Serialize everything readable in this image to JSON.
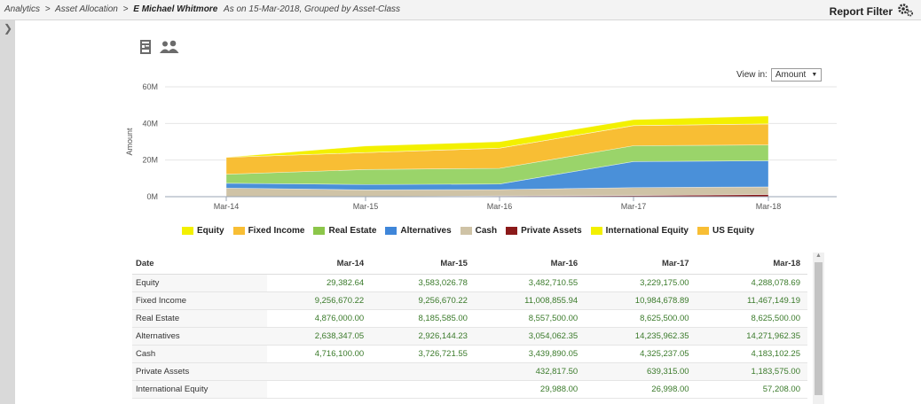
{
  "breadcrumb": {
    "analytics": "Analytics",
    "sep1": ">",
    "asset_allocation": "Asset Allocation",
    "sep2": ">",
    "client": "E Michael Whitmore",
    "subtitle": "As on 15-Mar-2018, Grouped by Asset-Class"
  },
  "report_filter": {
    "label": "Report Filter",
    "icon": "gears-icon"
  },
  "toolbar_icons": [
    "report-icon",
    "users-icon"
  ],
  "view_in": {
    "label": "View in:",
    "value": "Amount"
  },
  "chart_data": {
    "type": "area",
    "stacked": true,
    "x": [
      "Mar-14",
      "Mar-15",
      "Mar-16",
      "Mar-17",
      "Mar-18"
    ],
    "ylabel": "Amount",
    "ylim": [
      0,
      60000000
    ],
    "yticks": [
      0,
      20000000,
      40000000,
      60000000
    ],
    "ytick_labels": [
      "0M",
      "20M",
      "40M",
      "60M"
    ],
    "grid": true,
    "legend_position": "bottom",
    "series": [
      {
        "name": "Private Assets",
        "color": "#8b1a1a",
        "values": [
          0,
          0,
          432817.5,
          639315.0,
          1183575.0
        ]
      },
      {
        "name": "Cash",
        "color": "#cfc3a6",
        "values": [
          4716100.0,
          3726721.55,
          3439890.05,
          4325237.05,
          4183102.25
        ]
      },
      {
        "name": "Alternatives",
        "color": "#4a90d9",
        "values": [
          2638347.05,
          2926144.23,
          3054062.35,
          14235962.35,
          14271962.35
        ]
      },
      {
        "name": "Real Estate",
        "color": "#9ad46a",
        "values": [
          4876000.0,
          8185585.0,
          8557500.0,
          8625500.0,
          8625500.0
        ]
      },
      {
        "name": "Fixed Income",
        "color": "#f8be34",
        "values": [
          9256670.22,
          9256670.22,
          11008855.94,
          10984678.89,
          11467149.19
        ]
      },
      {
        "name": "International Equity",
        "color": "#f5f03a",
        "values": [
          0,
          0,
          29988.0,
          26998.0,
          57208.0
        ]
      },
      {
        "name": "Equity",
        "color": "#f3f000",
        "values": [
          29382.64,
          3583026.78,
          3482710.55,
          3229175.0,
          4288078.69
        ]
      }
    ]
  },
  "legend": [
    {
      "label": "Equity",
      "color": "#f3f000"
    },
    {
      "label": "Fixed Income",
      "color": "#f8be34"
    },
    {
      "label": "Real Estate",
      "color": "#8cc64a"
    },
    {
      "label": "Alternatives",
      "color": "#3f86d9"
    },
    {
      "label": "Cash",
      "color": "#cfc3a6"
    },
    {
      "label": "Private Assets",
      "color": "#8b1a1a"
    },
    {
      "label": "International Equity",
      "color": "#f3f000"
    },
    {
      "label": "US Equity",
      "color": "#f8be34"
    }
  ],
  "table": {
    "headers": [
      "Date",
      "Mar-14",
      "Mar-15",
      "Mar-16",
      "Mar-17",
      "Mar-18"
    ],
    "rows": [
      [
        "Equity",
        "29,382.64",
        "3,583,026.78",
        "3,482,710.55",
        "3,229,175.00",
        "4,288,078.69"
      ],
      [
        "Fixed Income",
        "9,256,670.22",
        "9,256,670.22",
        "11,008,855.94",
        "10,984,678.89",
        "11,467,149.19"
      ],
      [
        "Real Estate",
        "4,876,000.00",
        "8,185,585.00",
        "8,557,500.00",
        "8,625,500.00",
        "8,625,500.00"
      ],
      [
        "Alternatives",
        "2,638,347.05",
        "2,926,144.23",
        "3,054,062.35",
        "14,235,962.35",
        "14,271,962.35"
      ],
      [
        "Cash",
        "4,716,100.00",
        "3,726,721.55",
        "3,439,890.05",
        "4,325,237.05",
        "4,183,102.25"
      ],
      [
        "Private Assets",
        "",
        "",
        "432,817.50",
        "639,315.00",
        "1,183,575.00"
      ],
      [
        "International Equity",
        "",
        "",
        "29,988.00",
        "26,998.00",
        "57,208.00"
      ]
    ]
  }
}
